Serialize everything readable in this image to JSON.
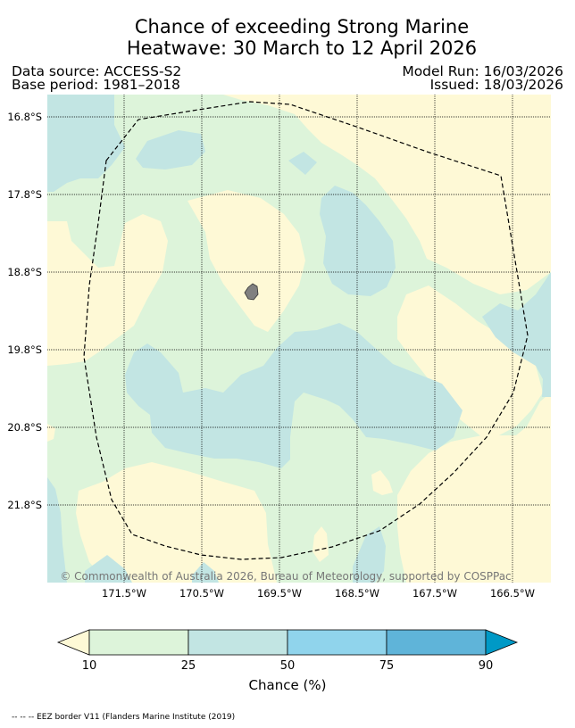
{
  "title": {
    "line1": "Chance of exceeding Strong Marine",
    "line2": "Heatwave: 30 March to 12 April 2026"
  },
  "meta": {
    "data_source": "Data source: ACCESS-S2",
    "base_period": "Base period: 1981–2018",
    "model_run": "Model Run: 16/03/2026",
    "issued": "Issued: 18/03/2026"
  },
  "map": {
    "lat_labels": [
      "16.8°S",
      "17.8°S",
      "18.8°S",
      "19.8°S",
      "20.8°S",
      "21.8°S"
    ],
    "lon_labels": [
      "171.5°W",
      "170.5°W",
      "169.5°W",
      "168.5°W",
      "167.5°W",
      "166.5°W"
    ],
    "copyright": "© Commonwealth of Australia 2026, Bureau of Meteorology, supported by COSPPac",
    "colors": {
      "below_10": "#fef9d6",
      "10_25": "#ddf4da",
      "25_50": "#c2e5e3",
      "50_75": "#90d4ec",
      "75_90": "#5fb4d9",
      "above_90": "#0099c6",
      "land": "#808080"
    }
  },
  "colorbar": {
    "ticks": [
      "10",
      "25",
      "50",
      "75",
      "90"
    ],
    "label": "Chance (%)"
  },
  "footnote": "-- -- -- EEZ border V11 (Flanders Marine Institute (2019)"
}
